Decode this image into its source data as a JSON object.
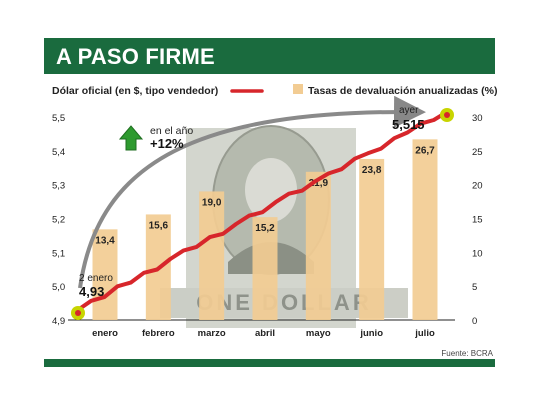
{
  "header": {
    "title": "A PASO FIRME"
  },
  "footer": {
    "source": "Fuente: BCRA"
  },
  "colors": {
    "header_green": "#1a6b3e",
    "bar": "#f2cc93",
    "line": "#d7262b",
    "arrow": "#2e9a2f",
    "endpoint": "#c8d400"
  },
  "chart_data": {
    "type": "bar+line",
    "categories": [
      "enero",
      "febrero",
      "marzo",
      "abril",
      "mayo",
      "junio",
      "julio"
    ],
    "series": [
      {
        "name": "Dólar oficial (en $, tipo vendedor)",
        "type": "line",
        "axis": "left",
        "start_label": "2 enero",
        "start_value_label": "4,93",
        "start_value": 4.93,
        "end_label": "ayer",
        "end_value_label": "5,515",
        "end_value": 5.515
      },
      {
        "name": "Tasas de devaluación anualizadas (%)",
        "type": "bar",
        "axis": "right",
        "values": [
          13.4,
          15.6,
          19.0,
          15.2,
          21.9,
          23.8,
          26.7
        ],
        "labels": [
          "13,4",
          "15,6",
          "19,0",
          "15,2",
          "21,9",
          "23,8",
          "26,7"
        ]
      }
    ],
    "left_axis": {
      "ylim": [
        4.9,
        5.5
      ],
      "ticks": [
        "5,5",
        "5,4",
        "5,3",
        "5,2",
        "5,1",
        "5,0",
        "4,9"
      ]
    },
    "right_axis": {
      "ylim": [
        0,
        30
      ],
      "ticks": [
        "30",
        "25",
        "20",
        "15",
        "10",
        "5",
        "0"
      ]
    },
    "annotation": {
      "line1": "en el año",
      "line2": "+12%"
    },
    "grid": false
  }
}
